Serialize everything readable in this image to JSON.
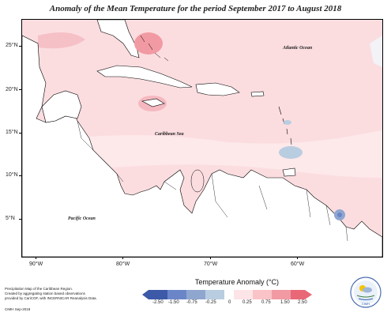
{
  "title": "Anomaly of the Mean Temperature for the period September 2017 to August 2018",
  "map": {
    "labels": {
      "atlantic": "Atlantic Ocean",
      "caribbean": "Caribbean Sea",
      "pacific": "Pacific Ocean"
    },
    "lat_labels": [
      "25°N",
      "20°N",
      "15°N",
      "10°N",
      "5°N"
    ],
    "lon_labels": [
      "90°W",
      "80°W",
      "70°W",
      "60°W"
    ]
  },
  "legend": {
    "title": "Temperature Anomaly (°C)",
    "labels": [
      "-2.50",
      "-1.50",
      "-0.75",
      "-0.25",
      "0",
      "0.25",
      "0.75",
      "1.50",
      "2.50"
    ],
    "colors": [
      "#3c5aa8",
      "#6b86c8",
      "#8fa6cf",
      "#b9cde0",
      "#ffffff",
      "#fde4e6",
      "#f9c3c8",
      "#f29aa3",
      "#e96878"
    ]
  },
  "footnote": [
    "Precipitation Map of the Caribbean Region.",
    "Created by aggregating station based observations",
    "provided by CariCOF, with INCERNICAR Reanalysis Data."
  ],
  "credit": "CIMH Sep-2018",
  "logo_text": "CIMH"
}
